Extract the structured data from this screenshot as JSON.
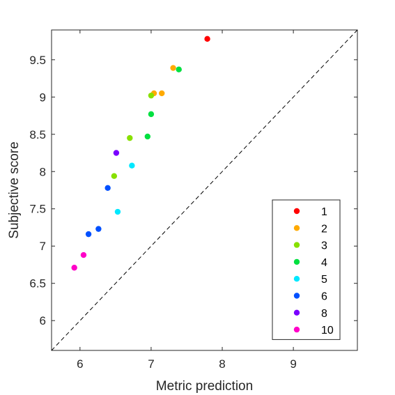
{
  "chart_data": {
    "type": "scatter",
    "title": "",
    "xlabel": "Metric prediction",
    "ylabel": "Subjective score",
    "xlim": [
      5.6,
      9.9
    ],
    "ylim": [
      5.6,
      9.9
    ],
    "xticks": [
      "6",
      "7",
      "8",
      "9"
    ],
    "yticks": [
      "6",
      "6.5",
      "7",
      "7.5",
      "8",
      "8.5",
      "9",
      "9.5"
    ],
    "xtick_values": [
      6,
      7,
      8,
      9
    ],
    "ytick_values": [
      6,
      6.5,
      7,
      7.5,
      8,
      8.5,
      9,
      9.5
    ],
    "grid": false,
    "reference_line": "y = x (dashed)",
    "legend_position": "bottom-right",
    "series": [
      {
        "name": "1",
        "color": "#ff0000",
        "points": [
          [
            7.79,
            9.78
          ]
        ]
      },
      {
        "name": "2",
        "color": "#ffaa00",
        "points": [
          [
            7.31,
            9.39
          ],
          [
            7.04,
            9.05
          ],
          [
            7.15,
            9.05
          ]
        ]
      },
      {
        "name": "3",
        "color": "#88e000",
        "points": [
          [
            7.0,
            9.02
          ],
          [
            6.7,
            8.45
          ],
          [
            6.48,
            7.94
          ]
        ]
      },
      {
        "name": "4",
        "color": "#00e040",
        "points": [
          [
            7.39,
            9.37
          ],
          [
            7.0,
            8.77
          ],
          [
            6.95,
            8.47
          ]
        ]
      },
      {
        "name": "5",
        "color": "#00e8ff",
        "points": [
          [
            6.73,
            8.08
          ],
          [
            6.53,
            7.46
          ]
        ]
      },
      {
        "name": "6",
        "color": "#0050ff",
        "points": [
          [
            6.39,
            7.78
          ],
          [
            6.26,
            7.23
          ],
          [
            6.12,
            7.16
          ]
        ]
      },
      {
        "name": "8",
        "color": "#7a00ff",
        "points": [
          [
            6.51,
            8.25
          ]
        ]
      },
      {
        "name": "10",
        "color": "#ff00c8",
        "points": [
          [
            6.05,
            6.88
          ],
          [
            5.92,
            6.71
          ]
        ]
      }
    ]
  }
}
